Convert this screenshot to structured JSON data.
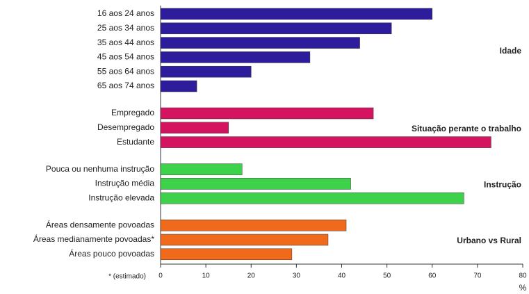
{
  "chart_data": {
    "type": "bar",
    "orientation": "horizontal",
    "groups": [
      {
        "name": "Idade",
        "color": "#2d1c9c",
        "categories": [
          "16 aos 24 anos",
          "25 aos 34 anos",
          "35 aos 44 anos",
          "45 aos 54 anos",
          "55 aos 64 anos",
          "65 aos 74 anos"
        ],
        "values": [
          60,
          51,
          44,
          33,
          20,
          8
        ]
      },
      {
        "name": "Situação perante o trabalho",
        "color": "#d4145f",
        "categories": [
          "Empregado",
          "Desempregado",
          "Estudante"
        ],
        "values": [
          47,
          15,
          73
        ]
      },
      {
        "name": "Instrução",
        "color": "#3ed14a",
        "categories": [
          "Pouca ou nenhuma instrução",
          "Instrução média",
          "Instrução elevada"
        ],
        "values": [
          18,
          42,
          67
        ]
      },
      {
        "name": "Urbano vs Rural",
        "color": "#f06a1c",
        "categories": [
          "Áreas densamente povoadas",
          "Áreas medianamente povoadas*",
          "Áreas pouco povoadas"
        ],
        "values": [
          41,
          37,
          29
        ]
      }
    ],
    "xlim": [
      0,
      80
    ],
    "xticks": [
      0,
      10,
      20,
      30,
      40,
      50,
      60,
      70,
      80
    ],
    "x_label": "%",
    "footnote": "* (estimado)"
  }
}
